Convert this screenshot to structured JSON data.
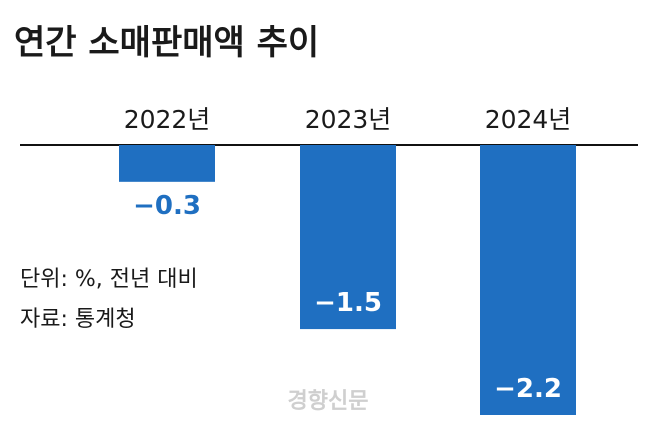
{
  "chart_data": {
    "type": "bar",
    "title": "연간 소매판매액 추이",
    "categories": [
      "2022년",
      "2023년",
      "2024년"
    ],
    "values": [
      -0.3,
      -1.5,
      -2.2
    ],
    "value_labels": [
      "−0.3",
      "−1.5",
      "−2.2"
    ],
    "xlabel": "",
    "ylabel": "",
    "ylim": [
      -2.2,
      0
    ],
    "grid": false,
    "legend": "none",
    "bar_color": "#1f6fc1",
    "axis_at_top": true
  },
  "notes": {
    "unit": "단위: %, 전년 대비",
    "source": "자료: 통계청"
  },
  "watermark": "경향신문"
}
